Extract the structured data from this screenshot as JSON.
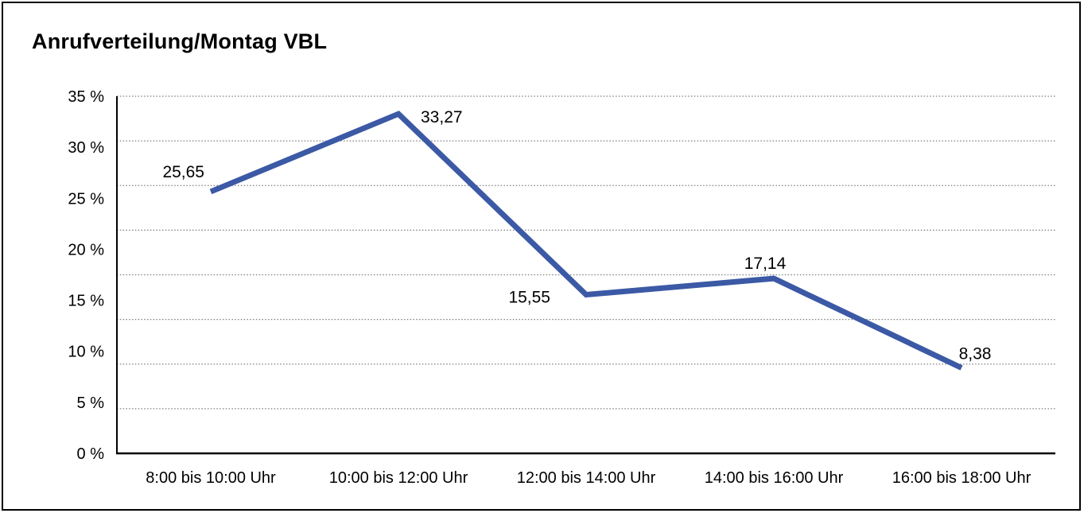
{
  "chart_data": {
    "type": "line",
    "title": "Anrufverteilung/Montag VBL",
    "categories": [
      "8:00 bis 10:00 Uhr",
      "10:00 bis 12:00 Uhr",
      "12:00 bis 14:00 Uhr",
      "14:00 bis 16:00 Uhr",
      "16:00 bis 18:00 Uhr"
    ],
    "series": [
      {
        "name": "Anrufverteilung Montag VBL",
        "values": [
          25.65,
          33.27,
          15.55,
          17.14,
          8.38
        ],
        "values_display": [
          "25,65",
          "33,27",
          "15,55",
          "17,14",
          "8,38"
        ]
      }
    ],
    "ylim": [
      0,
      35
    ],
    "y_tick_step": 5,
    "y_tick_labels": [
      "0 %",
      "5 %",
      "10 %",
      "15 %",
      "20 %",
      "25 %",
      "30 %",
      "35 %"
    ],
    "xlabel": "",
    "ylabel": "",
    "grid": "horizontal-dotted",
    "legend": "none",
    "colors": {
      "line": "#3B59A5",
      "text": "#000000",
      "grid": "#7d7d7d",
      "axis": "#000000",
      "background": "#ffffff",
      "frame_border": "#000000"
    }
  }
}
